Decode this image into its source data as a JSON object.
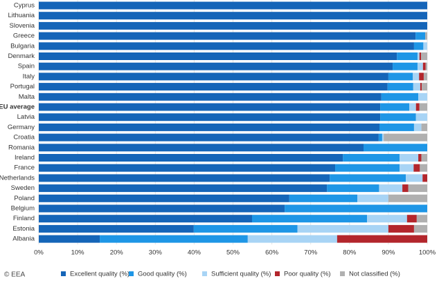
{
  "chart_data": {
    "type": "stacked-bar-horizontal",
    "source": "© EEA",
    "highlight_category": "EU average",
    "categories": [
      "Cyprus",
      "Lithuania",
      "Slovenia",
      "Greece",
      "Bulgaria",
      "Denmark",
      "Spain",
      "Italy",
      "Portugal",
      "Malta",
      "EU average",
      "Latvia",
      "Germany",
      "Croatia",
      "Romania",
      "Ireland",
      "France",
      "Netherlands",
      "Sweden",
      "Poland",
      "Belgium",
      "Finland",
      "Estonia",
      "Albania"
    ],
    "series": [
      {
        "name": "Excellent quality (%)",
        "color": "#1565b8",
        "values": [
          100,
          100,
          100,
          97,
          96.6,
          92.2,
          91.1,
          90,
          89.8,
          88.2,
          87.9,
          87.9,
          87.7,
          87.5,
          83.6,
          78.3,
          76.3,
          74.9,
          74.2,
          64.5,
          63.3,
          54.9,
          39.9,
          15.7
        ]
      },
      {
        "name": "Good quality (%)",
        "color": "#1e96e6",
        "values": [
          0,
          0,
          0,
          2.5,
          2.4,
          5.3,
          6.4,
          6.3,
          6.6,
          9.5,
          7.5,
          9.2,
          8.9,
          0.9,
          16.4,
          14.6,
          16.6,
          19.6,
          13.4,
          17.5,
          36.7,
          29.6,
          26.7,
          38.1
        ]
      },
      {
        "name": "Sufficient quality (%)",
        "color": "#a8d4f5",
        "values": [
          0,
          0,
          0,
          0,
          1,
          0.5,
          1.4,
          1.6,
          1.8,
          2.3,
          1.7,
          2.9,
          1.9,
          0.4,
          0,
          4.8,
          3.6,
          4.3,
          6,
          8,
          0,
          10.3,
          23.4,
          23
        ]
      },
      {
        "name": "Poor quality (%)",
        "color": "#b3262c",
        "values": [
          0,
          0,
          0,
          0,
          0,
          0.4,
          0.7,
          1.2,
          0.4,
          0,
          0.9,
          0,
          0,
          0,
          0,
          0.8,
          1.6,
          1.2,
          1.5,
          0,
          0,
          2.5,
          6.6,
          23.2
        ]
      },
      {
        "name": "Not classified (%)",
        "color": "#b0b0b0",
        "values": [
          0,
          0,
          0,
          0.5,
          0,
          1.6,
          0.4,
          0.9,
          1.4,
          0,
          2,
          0,
          1.5,
          11.2,
          0,
          1.5,
          1.9,
          0,
          4.9,
          10,
          0,
          2.7,
          3.4,
          0
        ]
      }
    ],
    "xlim": [
      0,
      100
    ],
    "xticks": [
      {
        "value": 0,
        "label": "0%"
      },
      {
        "value": 10,
        "label": "10%"
      },
      {
        "value": 20,
        "label": "20%"
      },
      {
        "value": 30,
        "label": "30%"
      },
      {
        "value": 40,
        "label": "40%"
      },
      {
        "value": 50,
        "label": "50%"
      },
      {
        "value": 60,
        "label": "60%"
      },
      {
        "value": 70,
        "label": "70%"
      },
      {
        "value": 80,
        "label": "80%"
      },
      {
        "value": 90,
        "label": "90%"
      },
      {
        "value": 100,
        "label": "100%"
      }
    ],
    "grid": true
  }
}
